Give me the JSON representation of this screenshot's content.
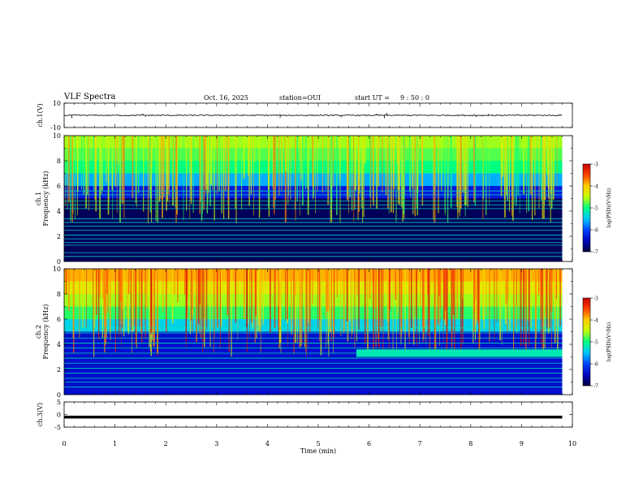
{
  "header": {
    "title": "VLF Spectra",
    "date": "Oct. 16, 2025",
    "station": "station=OUI",
    "start_label": "start  UT =",
    "start_time": "9 : 50 : 0"
  },
  "chart_data": [
    {
      "id": "ch1-waveform",
      "type": "line",
      "ylabel": "ch.1(V)",
      "ylim": [
        -10,
        10
      ],
      "yticks": [
        "10",
        "-10"
      ],
      "xlim": [
        0,
        10
      ],
      "trace_baseline": 0,
      "trace_color": "#000000",
      "spikes": [
        {
          "x": 0.15,
          "y": -2.3
        },
        {
          "x": 1.55,
          "y": 1.5
        },
        {
          "x": 1.6,
          "y": -1.2
        },
        {
          "x": 4.25,
          "y": -2.0
        },
        {
          "x": 5.45,
          "y": -1.6
        },
        {
          "x": 6.15,
          "y": 1.4
        },
        {
          "x": 6.3,
          "y": -2.4
        },
        {
          "x": 6.35,
          "y": 2.0
        },
        {
          "x": 8.1,
          "y": -1.5
        },
        {
          "x": 8.35,
          "y": 1.2
        }
      ]
    },
    {
      "id": "ch1-spectrogram",
      "type": "heatmap",
      "ylabel": "ch.1\nFrequency  (kHz)",
      "ylim": [
        0,
        10
      ],
      "yticks": [
        "0",
        "2",
        "4",
        "6",
        "8",
        "10"
      ],
      "xlim": [
        0,
        10
      ],
      "data_end_min": 9.8,
      "colorbar": {
        "label": "log(PSD)(V²/Hz)",
        "range": [
          -7,
          -3
        ],
        "ticks": [
          "-3",
          "-4",
          "-5",
          "-6",
          "-7"
        ]
      },
      "bands": [
        {
          "f": [
            0,
            5.0
          ],
          "level": -6.9
        },
        {
          "f": [
            5.0,
            6.0
          ],
          "level": -6.3
        },
        {
          "f": [
            6.0,
            7.0
          ],
          "level": -5.6
        },
        {
          "f": [
            7.0,
            8.0
          ],
          "level": -5.0
        },
        {
          "f": [
            8.0,
            9.0
          ],
          "level": -4.8
        },
        {
          "f": [
            9.0,
            10.0
          ],
          "level": -4.6
        }
      ],
      "lines_khz": [
        0.4,
        0.7,
        1.3,
        1.5,
        1.8,
        2.1,
        2.5,
        2.8,
        3.1,
        3.4,
        4.2,
        4.5,
        4.8,
        5.3,
        5.6
      ],
      "lines_level": -5.3
    },
    {
      "id": "ch2-spectrogram",
      "type": "heatmap",
      "ylabel": "ch.2\nFrequency  (kHz)",
      "ylim": [
        0,
        10
      ],
      "yticks": [
        "0",
        "2",
        "4",
        "6",
        "8",
        "10"
      ],
      "xlim": [
        0,
        10
      ],
      "data_end_min": 9.8,
      "colorbar": {
        "label": "log(PSD)(V²/Hz)",
        "range": [
          -7,
          -3
        ],
        "ticks": [
          "-3",
          "-4",
          "-5",
          "-6",
          "-7"
        ]
      },
      "bands": [
        {
          "f": [
            0,
            5.0
          ],
          "level": -6.4
        },
        {
          "f": [
            5.0,
            6.0
          ],
          "level": -5.4
        },
        {
          "f": [
            6.0,
            7.0
          ],
          "level": -4.9
        },
        {
          "f": [
            7.0,
            8.0
          ],
          "level": -4.6
        },
        {
          "f": [
            8.0,
            9.0
          ],
          "level": -4.3
        },
        {
          "f": [
            9.0,
            10.0
          ],
          "level": -3.9
        }
      ],
      "lines_khz": [
        0.6,
        1.0,
        1.3,
        1.7,
        2.1,
        2.5,
        2.9,
        3.3,
        3.7,
        4.1,
        4.5,
        4.9,
        5.3
      ],
      "lines_level": -5.2,
      "emission_band": {
        "x": [
          5.75,
          9.8
        ],
        "f": [
          3.0,
          3.6
        ],
        "level": -5.2
      }
    },
    {
      "id": "ch3-waveform",
      "type": "line",
      "ylabel": "ch.3(V)",
      "ylim": [
        -5,
        5
      ],
      "yticks": [
        "5",
        "0",
        "-5"
      ],
      "xlim": [
        0,
        10
      ],
      "trace_baseline": -1.0,
      "trace_color": "#000000"
    }
  ],
  "xaxis": {
    "label": "Time  (min)",
    "ticks": [
      "0",
      "1",
      "2",
      "3",
      "4",
      "5",
      "6",
      "7",
      "8",
      "9",
      "10"
    ]
  },
  "colormap": [
    "#000040",
    "#0000c0",
    "#0044ff",
    "#00c8ff",
    "#00ff80",
    "#c8ff00",
    "#ffcc00",
    "#ff4000",
    "#c80000",
    "#ffffff"
  ]
}
